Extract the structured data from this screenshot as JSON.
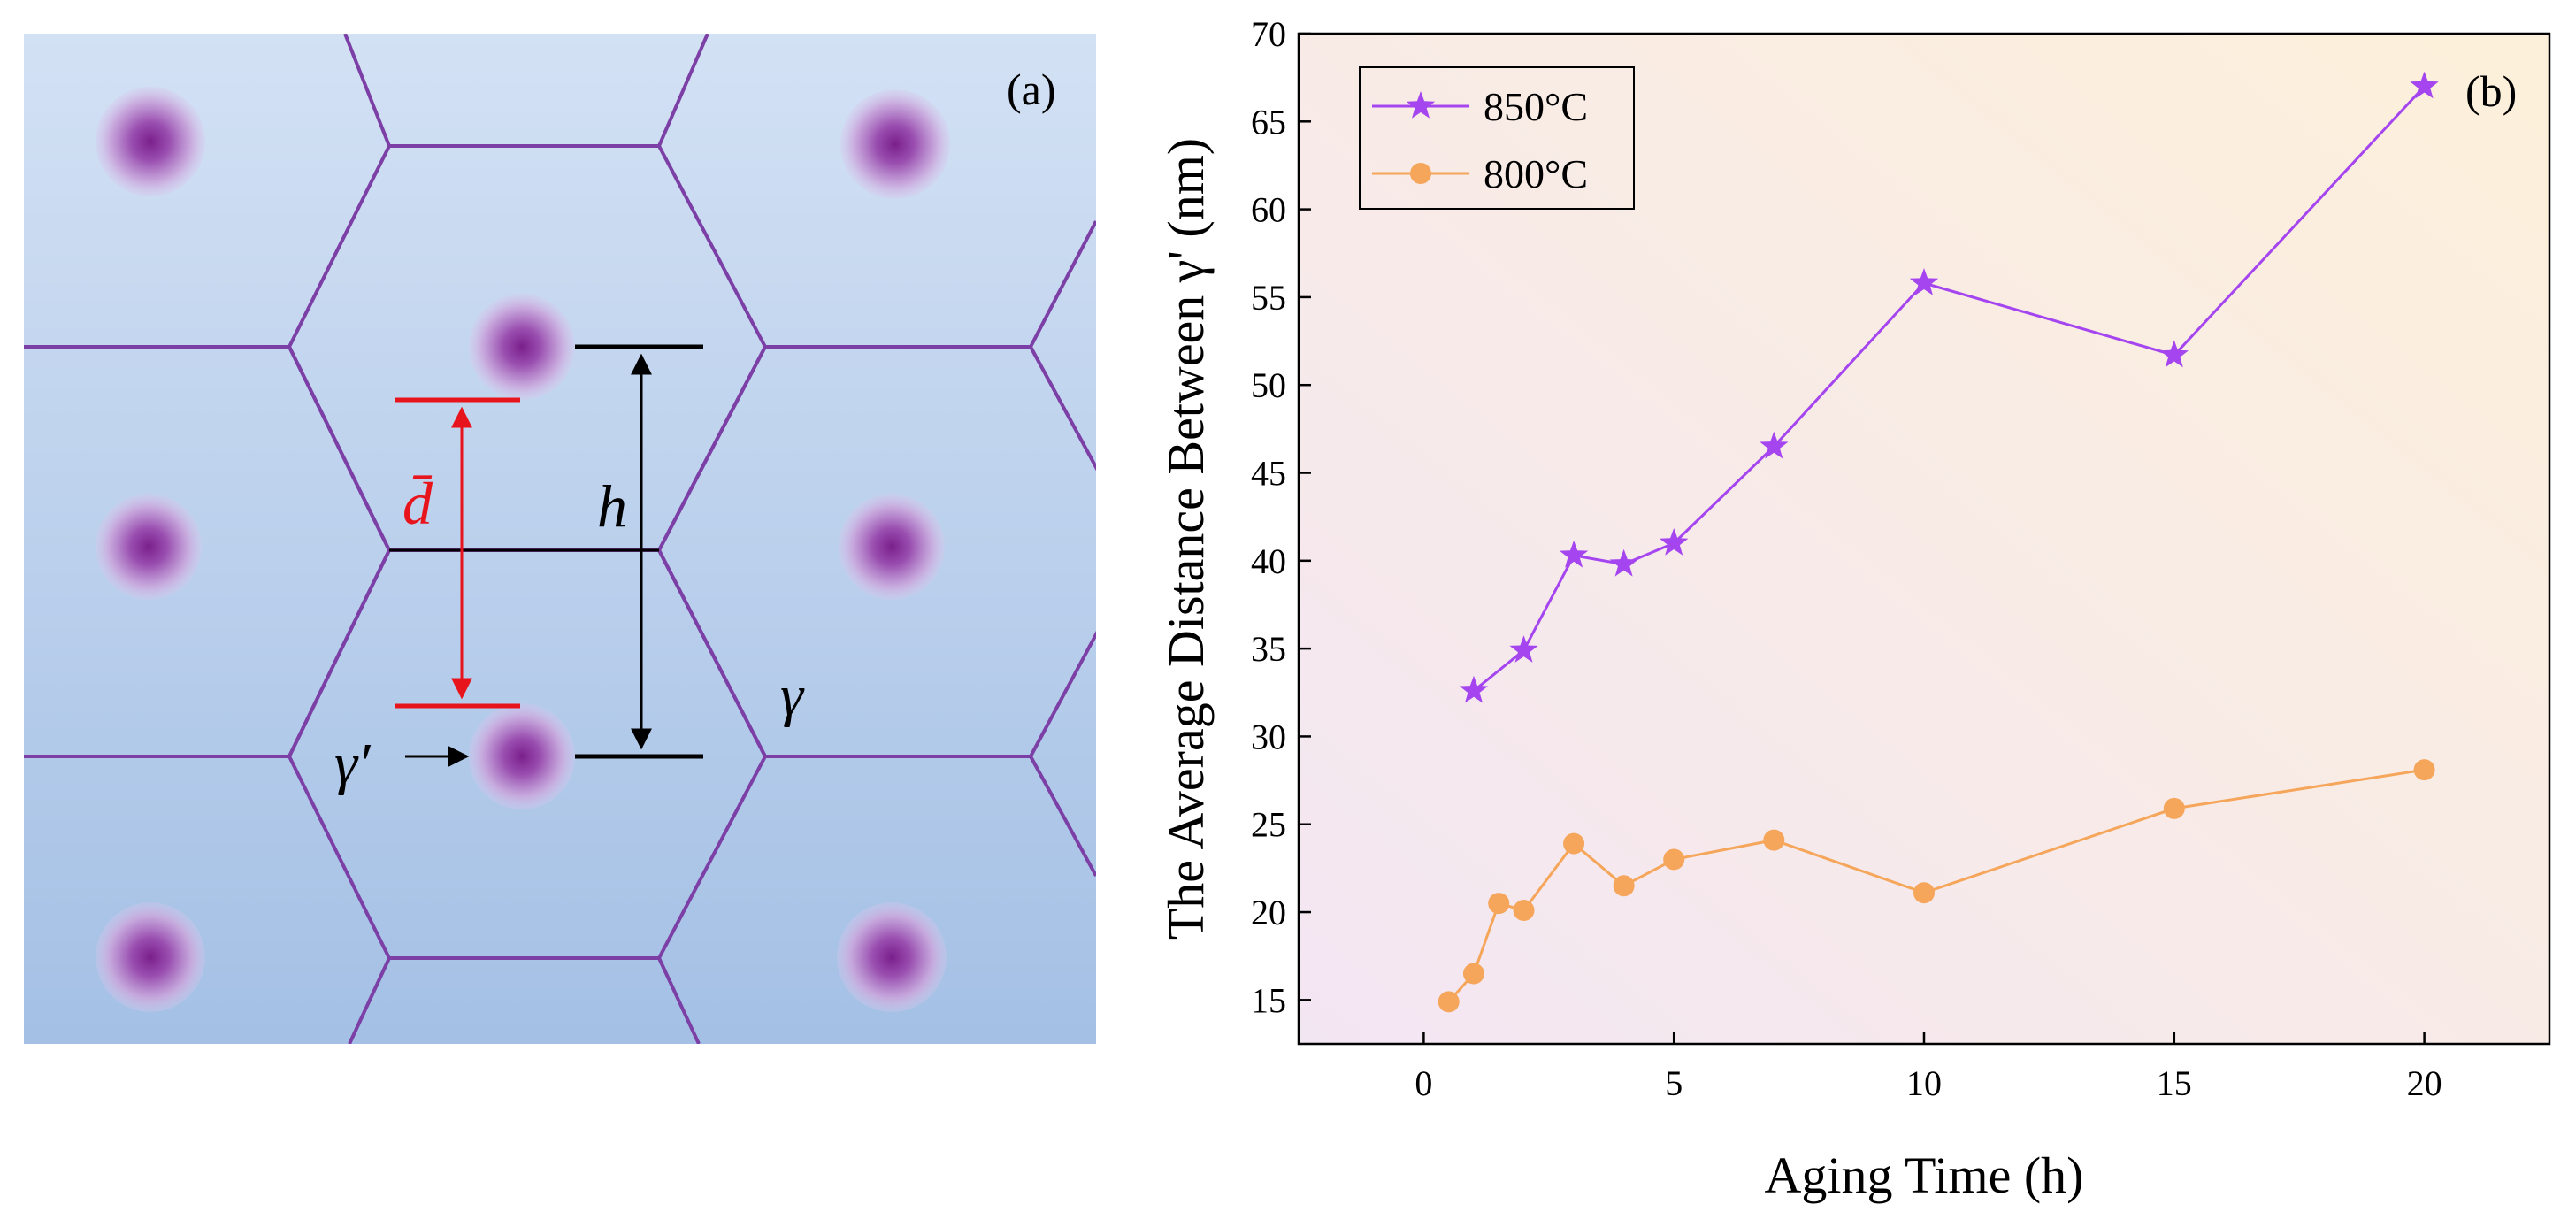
{
  "panel_a": {
    "label": "(a)",
    "d_label": "d̄",
    "h_label": "h",
    "gamma_label": "γ",
    "gamma_prime_label": "γ′",
    "colors": {
      "background_top": "#d3e1f4",
      "background_bottom": "#a4c0e5",
      "grain_boundary": "#7b3fa6",
      "precipitate": "#7a1f8c",
      "d_marker": "#e8141c",
      "h_marker": "#000000"
    }
  },
  "panel_b": {
    "label": "(b)"
  },
  "chart_data": {
    "type": "line",
    "title": "",
    "xlabel": "Aging Time (h)",
    "ylabel": "The Average Distance Between γ' (nm)",
    "xlim": [
      -2.5,
      22.5
    ],
    "ylim": [
      12.5,
      70
    ],
    "xticks": [
      0,
      5,
      10,
      15,
      20
    ],
    "yticks": [
      15,
      20,
      25,
      30,
      35,
      40,
      45,
      50,
      55,
      60,
      65,
      70
    ],
    "legend_position": "top-left",
    "background": {
      "top_right": "#fdf0da",
      "bottom_left": "#f3e6f3"
    },
    "series": [
      {
        "name": "850°C",
        "marker": "star",
        "color": "#a545f0",
        "x": [
          1,
          2,
          3,
          4,
          5,
          7,
          10,
          15,
          20
        ],
        "y": [
          32.6,
          34.9,
          40.3,
          39.8,
          41.0,
          46.5,
          55.8,
          51.7,
          67.0
        ]
      },
      {
        "name": "800°C",
        "marker": "circle",
        "color": "#f5a65b",
        "x": [
          0.5,
          1,
          1.5,
          2,
          3,
          4,
          5,
          7,
          10,
          15,
          20
        ],
        "y": [
          14.9,
          16.5,
          20.5,
          20.1,
          23.9,
          21.5,
          23.0,
          24.1,
          21.1,
          25.9,
          28.1
        ]
      }
    ]
  }
}
